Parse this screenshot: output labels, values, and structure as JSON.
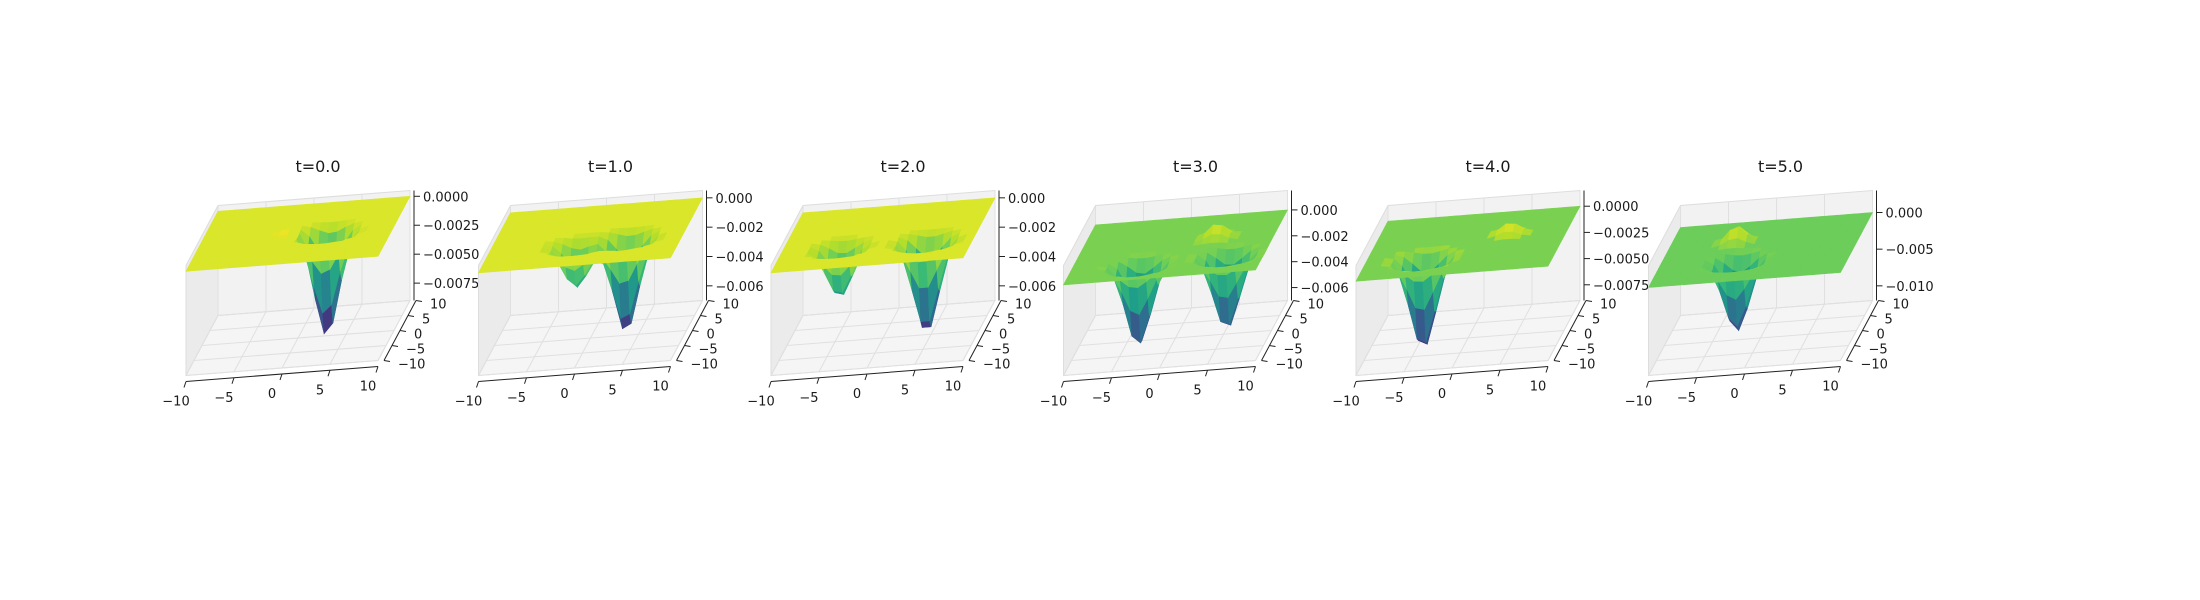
{
  "chart_data": [
    {
      "type": "surface3d",
      "title": "t=0.0",
      "x_ticks": [
        "−10",
        "−5",
        "0",
        "5",
        "10"
      ],
      "y_ticks": [
        "−10",
        "−5",
        "0",
        "5",
        "10"
      ],
      "z_ticks": [
        "0.0000",
        "−0.0025",
        "−0.0050",
        "−0.0075"
      ],
      "xlim": [
        -10,
        10
      ],
      "ylim": [
        -10,
        10
      ],
      "zlim": [
        -0.009,
        0.0005
      ],
      "plane_color": "#d9e62a",
      "colormap": "viridis",
      "features": [
        {
          "kind": "well",
          "x": 3,
          "y": 0,
          "depth": -0.009
        },
        {
          "kind": "peak",
          "x": -1,
          "y": 0,
          "height": 0.0004
        }
      ]
    },
    {
      "type": "surface3d",
      "title": "t=1.0",
      "x_ticks": [
        "−10",
        "−5",
        "0",
        "5",
        "10"
      ],
      "y_ticks": [
        "−10",
        "−5",
        "0",
        "5",
        "10"
      ],
      "z_ticks": [
        "0.000",
        "−0.002",
        "−0.004",
        "−0.006"
      ],
      "xlim": [
        -10,
        10
      ],
      "ylim": [
        -10,
        10
      ],
      "zlim": [
        -0.007,
        0.0005
      ],
      "plane_color": "#d9e62a",
      "colormap": "viridis",
      "features": [
        {
          "kind": "well",
          "x": 4,
          "y": -2,
          "depth": -0.0065
        },
        {
          "kind": "well",
          "x": -1,
          "y": -3,
          "depth": -0.003
        }
      ]
    },
    {
      "type": "surface3d",
      "title": "t=2.0",
      "x_ticks": [
        "−10",
        "−5",
        "0",
        "5",
        "10"
      ],
      "y_ticks": [
        "−10",
        "−5",
        "0",
        "5",
        "10"
      ],
      "z_ticks": [
        "0.000",
        "−0.002",
        "−0.004",
        "−0.006"
      ],
      "xlim": [
        -10,
        10
      ],
      "ylim": [
        -10,
        10
      ],
      "zlim": [
        -0.007,
        0.0005
      ],
      "plane_color": "#d9e62a",
      "colormap": "viridis",
      "features": [
        {
          "kind": "well",
          "x": 5,
          "y": -3,
          "depth": -0.0065
        },
        {
          "kind": "well",
          "x": -4,
          "y": -3,
          "depth": -0.0035
        }
      ]
    },
    {
      "type": "surface3d",
      "title": "t=3.0",
      "x_ticks": [
        "−10",
        "−5",
        "0",
        "5",
        "10"
      ],
      "y_ticks": [
        "−10",
        "−5",
        "0",
        "5",
        "10"
      ],
      "z_ticks": [
        "0.000",
        "−0.002",
        "−0.004",
        "−0.006"
      ],
      "xlim": [
        -10,
        10
      ],
      "ylim": [
        -10,
        10
      ],
      "zlim": [
        -0.007,
        0.0015
      ],
      "plane_color": "#7ad151",
      "colormap": "viridis",
      "features": [
        {
          "kind": "well",
          "x": -3,
          "y": -5,
          "depth": -0.0065
        },
        {
          "kind": "well",
          "x": 6,
          "y": -4,
          "depth": -0.006
        },
        {
          "kind": "peak",
          "x": 4,
          "y": 2,
          "height": 0.0012
        }
      ]
    },
    {
      "type": "surface3d",
      "title": "t=4.0",
      "x_ticks": [
        "−10",
        "−5",
        "0",
        "5",
        "10"
      ],
      "y_ticks": [
        "−10",
        "−5",
        "0",
        "5",
        "10"
      ],
      "z_ticks": [
        "0.0000",
        "−0.0025",
        "−0.0050",
        "−0.0075"
      ],
      "xlim": [
        -10,
        10
      ],
      "ylim": [
        -10,
        10
      ],
      "zlim": [
        -0.009,
        0.0015
      ],
      "plane_color": "#7ad151",
      "colormap": "viridis",
      "features": [
        {
          "kind": "well",
          "x": -4,
          "y": -4,
          "depth": -0.009
        },
        {
          "kind": "peak",
          "x": 4,
          "y": 2,
          "height": 0.0012
        }
      ]
    },
    {
      "type": "surface3d",
      "title": "t=5.0",
      "x_ticks": [
        "−10",
        "−5",
        "0",
        "5",
        "10"
      ],
      "y_ticks": [
        "−10",
        "−5",
        "0",
        "5",
        "10"
      ],
      "z_ticks": [
        "0.000",
        "−0.005",
        "−0.010"
      ],
      "xlim": [
        -10,
        10
      ],
      "ylim": [
        -10,
        10
      ],
      "zlim": [
        -0.012,
        0.003
      ],
      "plane_color": "#6ccd5a",
      "colormap": "viridis",
      "features": [
        {
          "kind": "well",
          "x": -2,
          "y": -3,
          "depth": -0.01
        },
        {
          "kind": "peak",
          "x": -3,
          "y": 3,
          "height": 0.0025
        }
      ]
    }
  ]
}
